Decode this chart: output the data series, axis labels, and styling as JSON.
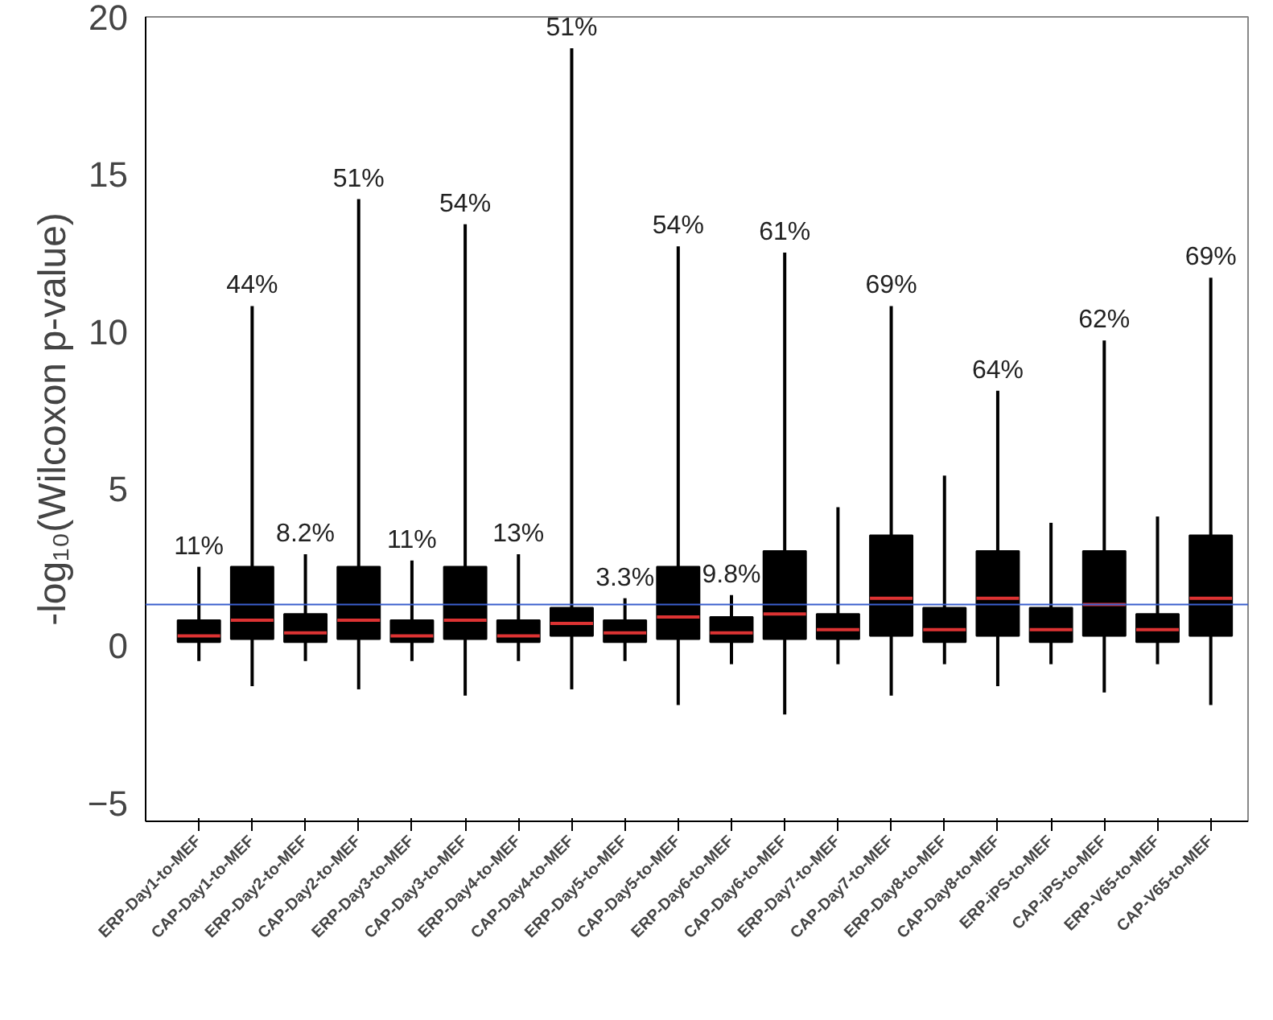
{
  "chart_data": {
    "type": "box",
    "ylabel": "-log₁₀(Wilcoxon p-value)",
    "categories": [
      "ERP-Day1-to-MEF",
      "CAP-Day1-to-MEF",
      "ERP-Day2-to-MEF",
      "CAP-Day2-to-MEF",
      "ERP-Day3-to-MEF",
      "CAP-Day3-to-MEF",
      "ERP-Day4-to-MEF",
      "CAP-Day4-to-MEF",
      "ERP-Day5-to-MEF",
      "CAP-Day5-to-MEF",
      "ERP-Day6-to-MEF",
      "CAP-Day6-to-MEF",
      "ERP-Day7-to-MEF",
      "CAP-Day7-to-MEF",
      "ERP-Day8-to-MEF",
      "CAP-Day8-to-MEF",
      "ERP-iPS-to-MEF",
      "CAP-iPS-to-MEF",
      "ERP-V65-to-MEF",
      "CAP-V65-to-MEF"
    ],
    "color": "#000000",
    "boxes": [
      {
        "low": -0.5,
        "q1": 0.1,
        "median": 0.3,
        "q3": 0.8,
        "high": 2.5
      },
      {
        "low": -1.3,
        "q1": 0.2,
        "median": 0.8,
        "q3": 2.5,
        "high": 10.8
      },
      {
        "low": -0.5,
        "q1": 0.1,
        "median": 0.4,
        "q3": 1.0,
        "high": 2.9
      },
      {
        "low": -1.4,
        "q1": 0.2,
        "median": 0.8,
        "q3": 2.5,
        "high": 14.2
      },
      {
        "low": -0.5,
        "q1": 0.1,
        "median": 0.3,
        "q3": 0.8,
        "high": 2.7
      },
      {
        "low": -1.6,
        "q1": 0.2,
        "median": 0.8,
        "q3": 2.5,
        "high": 13.4
      },
      {
        "low": -0.5,
        "q1": 0.1,
        "median": 0.3,
        "q3": 0.8,
        "high": 2.9
      },
      {
        "low": -1.4,
        "q1": 0.3,
        "median": 0.7,
        "q3": 1.2,
        "high": 19.0
      },
      {
        "low": -0.5,
        "q1": 0.1,
        "median": 0.4,
        "q3": 0.8,
        "high": 1.5
      },
      {
        "low": -1.9,
        "q1": 0.2,
        "median": 0.9,
        "q3": 2.5,
        "high": 12.7
      },
      {
        "low": -0.6,
        "q1": 0.1,
        "median": 0.4,
        "q3": 0.9,
        "high": 1.6
      },
      {
        "low": -2.2,
        "q1": 0.2,
        "median": 1.0,
        "q3": 3.0,
        "high": 12.5
      },
      {
        "low": -0.6,
        "q1": 0.2,
        "median": 0.5,
        "q3": 1.0,
        "high": 4.4
      },
      {
        "low": -1.6,
        "q1": 0.3,
        "median": 1.5,
        "q3": 3.5,
        "high": 10.8
      },
      {
        "low": -0.6,
        "q1": 0.1,
        "median": 0.5,
        "q3": 1.2,
        "high": 5.4
      },
      {
        "low": -1.3,
        "q1": 0.3,
        "median": 1.5,
        "q3": 3.0,
        "high": 8.1
      },
      {
        "low": -0.6,
        "q1": 0.1,
        "median": 0.5,
        "q3": 1.2,
        "high": 3.9
      },
      {
        "low": -1.5,
        "q1": 0.3,
        "median": 1.3,
        "q3": 3.0,
        "high": 9.7
      },
      {
        "low": -0.6,
        "q1": 0.1,
        "median": 0.5,
        "q3": 1.0,
        "high": 4.1
      },
      {
        "low": -1.9,
        "q1": 0.3,
        "median": 1.5,
        "q3": 3.5,
        "high": 11.7
      }
    ],
    "ylim": [
      -5.6,
      20
    ],
    "yticks": [
      -5,
      0,
      5,
      10,
      15,
      20
    ],
    "grid": false,
    "ref_lines": [
      {
        "axis": "y",
        "value": 1.3,
        "color": "#3a5fcd"
      }
    ],
    "annotations": [
      "11%",
      "44%",
      "8.2%",
      "51%",
      "11%",
      "54%",
      "13%",
      "51%",
      "3.3%",
      "54%",
      "9.8%",
      "61%",
      null,
      "69%",
      null,
      "64%",
      null,
      "62%",
      null,
      "69%"
    ]
  }
}
